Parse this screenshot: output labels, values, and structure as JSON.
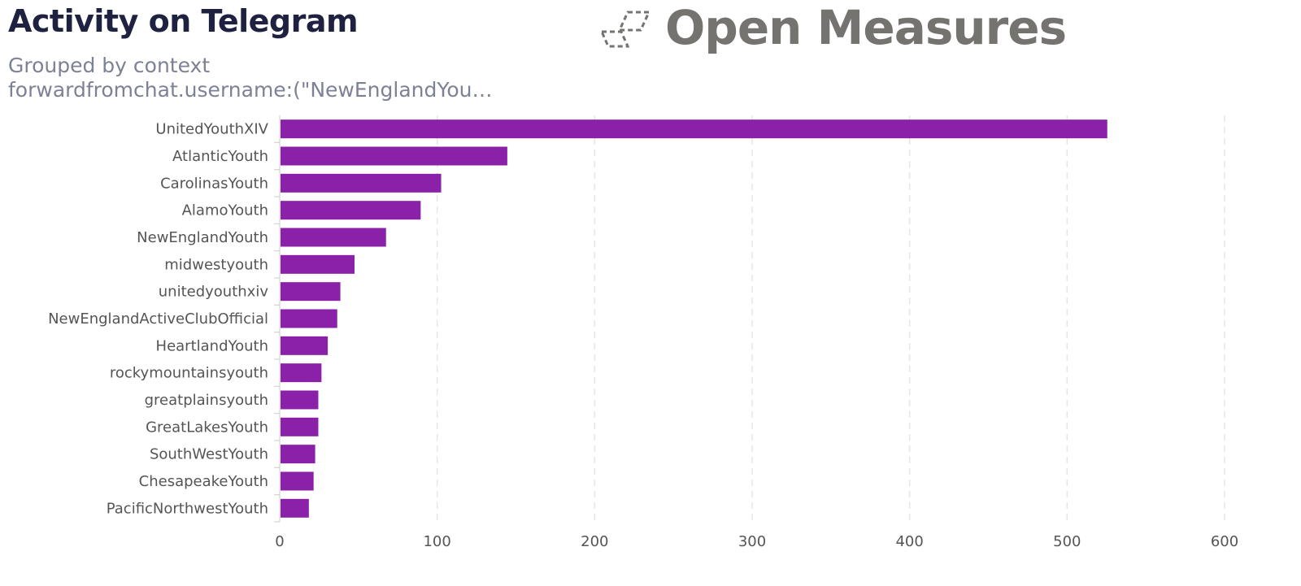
{
  "header": {
    "title": "Activity on Telegram",
    "subtitle_line1": "Grouped by context",
    "subtitle_line2": "forwardfromchat.username:(\"NewEnglandYou…",
    "logo_text": "Open Measures"
  },
  "colors": {
    "bar": "#8a21a8",
    "grid": "#e6e6e6",
    "label": "#555555"
  },
  "chart_data": {
    "type": "bar",
    "orientation": "horizontal",
    "title": "Activity on Telegram",
    "categories": [
      "UnitedYouthXIV",
      "AtlanticYouth",
      "CarolinasYouth",
      "AlamoYouth",
      "NewEnglandYouth",
      "midwestyouth",
      "unitedyouthxiv",
      "NewEnglandActiveClubOfficial",
      "HeartlandYouth",
      "rockymountainsyouth",
      "greatplainsyouth",
      "GreatLakesYouth",
      "SouthWestYouth",
      "ChesapeakeYouth",
      "PacificNorthwestYouth"
    ],
    "values": [
      525,
      144,
      102,
      89,
      67,
      47,
      38,
      36,
      30,
      26,
      24,
      24,
      22,
      21,
      18
    ],
    "xlim": [
      0,
      600
    ],
    "xticks": [
      "0",
      "100",
      "200",
      "300",
      "400",
      "500",
      "600"
    ],
    "xlabel": "",
    "ylabel": "",
    "grid": true
  }
}
